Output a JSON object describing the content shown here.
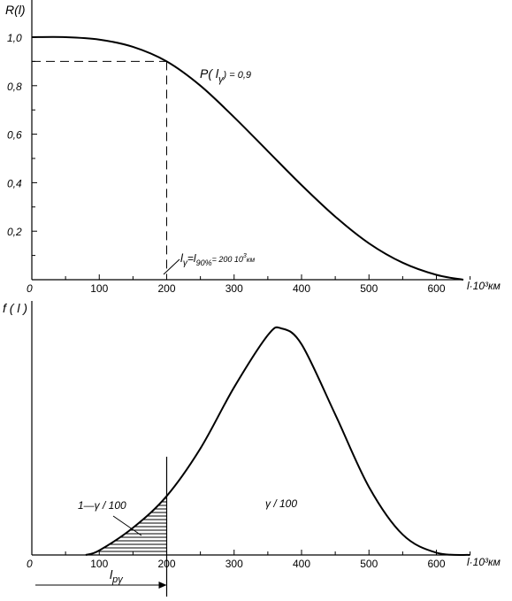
{
  "chart_data": [
    {
      "type": "line",
      "title": "",
      "ylabel": "R(l)",
      "xlabel": "l·10³км",
      "xlim": [
        0,
        650
      ],
      "ylim": [
        0,
        1.0
      ],
      "x_ticks": [
        "0",
        "100",
        "200",
        "300",
        "400",
        "500",
        "600"
      ],
      "y_ticks": [
        "0,2",
        "0,4",
        "0,6",
        "0,8",
        "1,0"
      ],
      "grid": false,
      "legend": "none",
      "series": [
        {
          "x": [
            0,
            50,
            100,
            150,
            200,
            250,
            300,
            350,
            400,
            450,
            500,
            550,
            600,
            640
          ],
          "y": [
            1.0,
            1.0,
            0.99,
            0.96,
            0.9,
            0.8,
            0.67,
            0.53,
            0.39,
            0.26,
            0.15,
            0.07,
            0.02,
            0.0
          ]
        }
      ],
      "annotations": {
        "curve_label_prefix": "P( l",
        "curve_label_sub": "γ",
        "curve_label_suffix": ") = 0,9",
        "reference_point": {
          "x": 200,
          "y": 0.9
        },
        "marker_lgamma": "l",
        "marker_lgamma_sub": "γ",
        "marker_eq": "=l",
        "marker_l90_sub": "90%",
        "marker_value": "= 200 10",
        "marker_value_sup": "3",
        "marker_value_unit": "км"
      }
    },
    {
      "type": "area",
      "title": "",
      "ylabel": "f ( l )",
      "xlabel": "l·10³км",
      "xlim": [
        0,
        650
      ],
      "x_ticks": [
        "0",
        "100",
        "200",
        "300",
        "400",
        "500",
        "600"
      ],
      "grid": false,
      "legend": "none",
      "series": [
        {
          "x": [
            80,
            100,
            150,
            200,
            250,
            300,
            350,
            370,
            400,
            450,
            500,
            550,
            600,
            650
          ],
          "y": [
            0.0,
            0.02,
            0.12,
            0.26,
            0.47,
            0.74,
            0.97,
            1.0,
            0.93,
            0.62,
            0.3,
            0.09,
            0.01,
            0.0
          ]
        }
      ],
      "shaded_region": {
        "x_from": 80,
        "x_to": 200,
        "pattern": "horizontal-hatch"
      },
      "annotations": {
        "left_area_label": "1—γ / 100",
        "right_area_label": "γ / 100",
        "arrow_label": "l",
        "arrow_label_sub": "pγ",
        "arrow_to_x": 200
      }
    }
  ]
}
